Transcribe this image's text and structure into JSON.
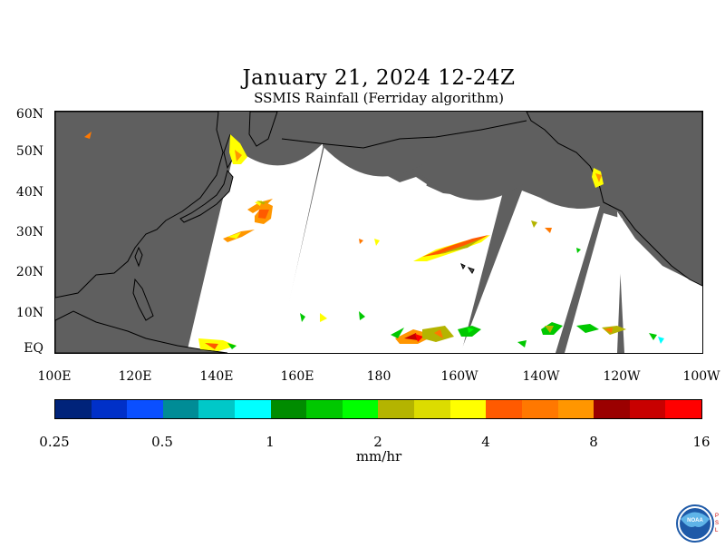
{
  "title": "January 21, 2024 12-24Z",
  "subtitle": "SSMIS Rainfall (Ferriday algorithm)",
  "map": {
    "land_color": "#5f5f5f",
    "no_data_color": "#5f5f5f",
    "coast_color": "#000000",
    "lat_labels": [
      "60N",
      "50N",
      "40N",
      "30N",
      "20N",
      "10N",
      "EQ"
    ],
    "lon_labels": [
      "100E",
      "120E",
      "140E",
      "160E",
      "180",
      "160W",
      "140W",
      "120W",
      "100W"
    ]
  },
  "colorbar": {
    "colors": [
      "#00237a",
      "#0030c8",
      "#0a4fff",
      "#008c96",
      "#00c8c8",
      "#00ffff",
      "#008c00",
      "#00c800",
      "#00ff00",
      "#b4b400",
      "#dcdc00",
      "#ffff00",
      "#ff5a00",
      "#ff7800",
      "#ff9600",
      "#9b0000",
      "#c80000",
      "#ff0000"
    ],
    "tick_labels": [
      "0.25",
      "0.5",
      "1",
      "2",
      "4",
      "8",
      "16"
    ],
    "units": "mm/hr"
  },
  "logo": {
    "name": "NOAA",
    "side_text": "PSL"
  }
}
